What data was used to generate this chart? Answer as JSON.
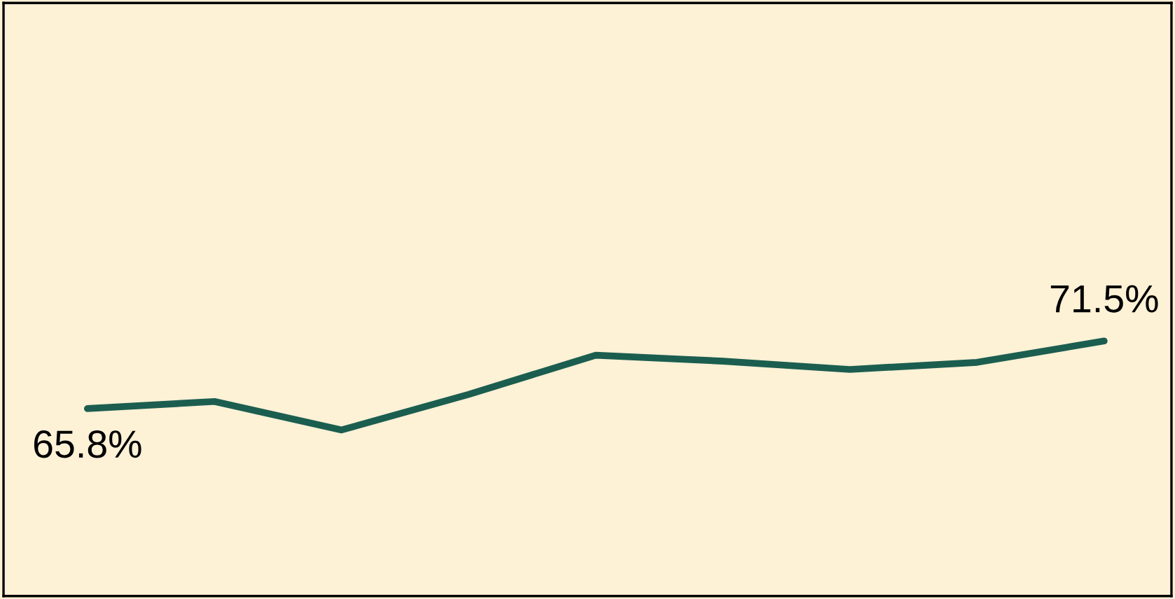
{
  "chart_data": {
    "type": "line",
    "categories": [
      null,
      null,
      null,
      null,
      null,
      null,
      null,
      null,
      null
    ],
    "series": [
      {
        "color": "#1b5e4f",
        "values": [
          65.8,
          66.4,
          64.0,
          67.0,
          70.3,
          69.8,
          69.1,
          69.7,
          71.5
        ],
        "value_labels": [
          "65.8%",
          null,
          null,
          null,
          null,
          null,
          null,
          null,
          "71.5%"
        ]
      }
    ],
    "ylim": [
      50,
      100
    ],
    "marker": "none",
    "line_style": "solid"
  }
}
